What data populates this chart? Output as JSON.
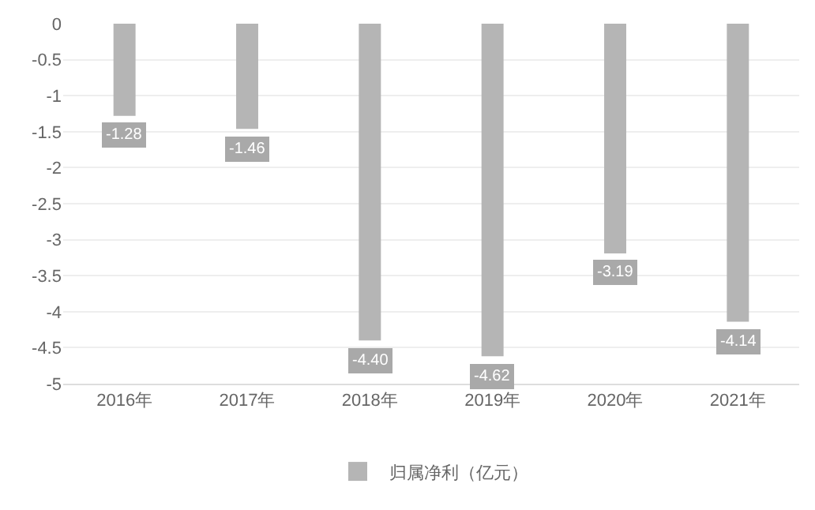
{
  "chart_data": {
    "type": "bar",
    "categories": [
      "2016年",
      "2017年",
      "2018年",
      "2019年",
      "2020年",
      "2021年"
    ],
    "series": [
      {
        "name": "归属净利（亿元）",
        "color": "#b5b5b5",
        "values": [
          -1.28,
          -1.46,
          -4.4,
          -4.62,
          -3.19,
          -4.14
        ],
        "value_labels": [
          "-1.28",
          "-1.46",
          "-4.40",
          "-4.62",
          "-3.19",
          "-4.14"
        ]
      }
    ],
    "ylim": [
      -5,
      0
    ],
    "yticks": [
      0,
      -0.5,
      -1,
      -1.5,
      -2,
      -2.5,
      -3,
      -3.5,
      -4,
      -4.5,
      -5
    ],
    "grid": "y",
    "legend": "bottom"
  }
}
